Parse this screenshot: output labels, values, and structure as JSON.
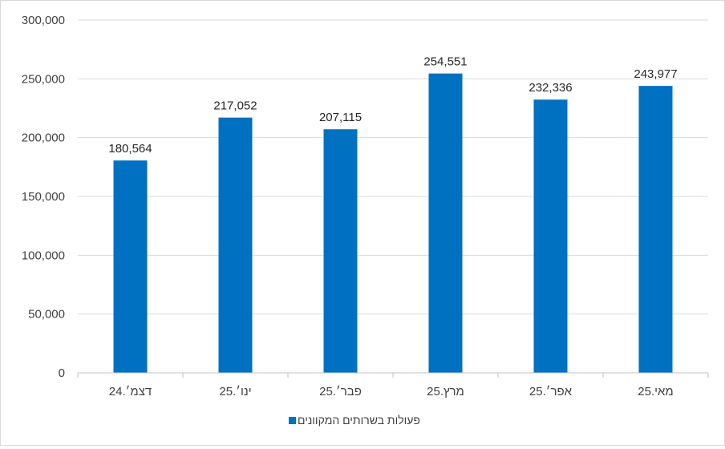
{
  "chart_data": {
    "type": "bar",
    "title": "",
    "xlabel": "",
    "ylabel": "",
    "categories": [
      "דצמ׳.24",
      "ינו׳.25",
      "פבר׳.25",
      "מרץ.25",
      "אפר׳.25",
      "מאי.25"
    ],
    "series": [
      {
        "name": "פעולות בשרותים המקוונים",
        "values": [
          180564,
          217052,
          207115,
          254551,
          232336,
          243977
        ],
        "value_labels": [
          "180,564",
          "217,052",
          "207,115",
          "254,551",
          "232,336",
          "243,977"
        ],
        "color": "#0070C0"
      }
    ],
    "ylim": [
      0,
      300000
    ],
    "y_ticks": [
      0,
      50000,
      100000,
      150000,
      200000,
      250000,
      300000
    ],
    "y_tick_labels": [
      "0",
      "50,000",
      "100,000",
      "150,000",
      "200,000",
      "250,000",
      "300,000"
    ],
    "grid": true,
    "legend": "bottom"
  }
}
